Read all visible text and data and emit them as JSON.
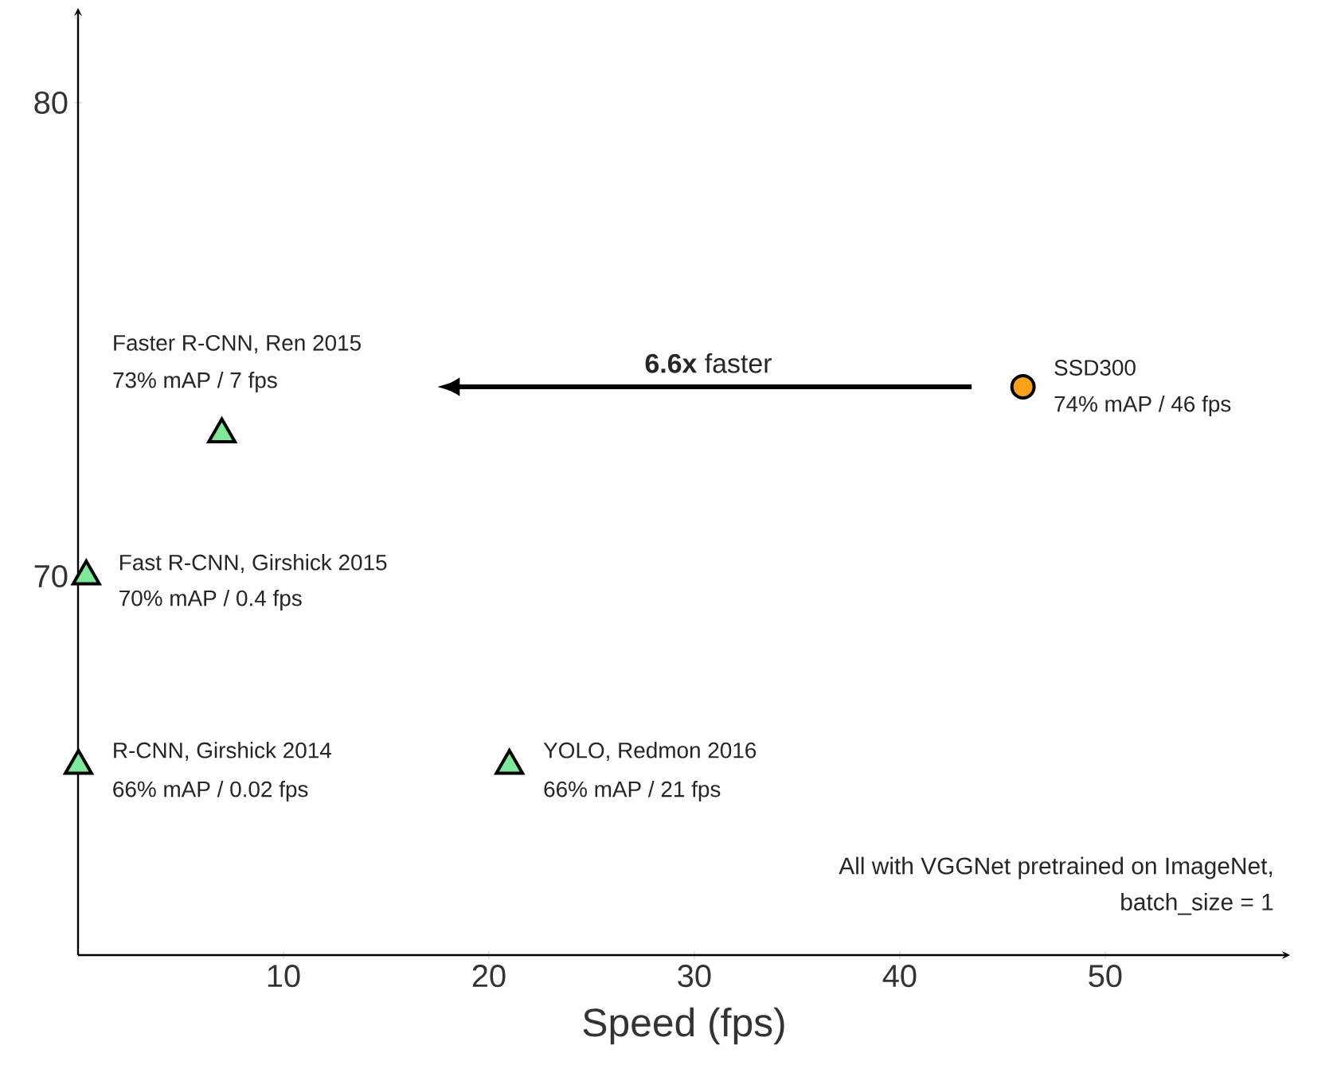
{
  "chart_data": {
    "type": "scatter",
    "xlabel": "Speed (fps)",
    "xlim": [
      0,
      59
    ],
    "ylim": [
      62,
      82
    ],
    "xticks": [
      10,
      20,
      30,
      40,
      50
    ],
    "yticks": [
      70,
      80
    ],
    "series": [
      {
        "color": "#7ee89a",
        "marker": "triangle",
        "x": [
          7,
          0.4,
          0.02,
          21
        ],
        "values": [
          73,
          70,
          66,
          66
        ]
      },
      {
        "color": "#f7a11a",
        "marker": "circle",
        "x": [
          46
        ],
        "values": [
          74
        ]
      }
    ],
    "annotations": [
      "Faster R-CNN, Ren 2015",
      "73% mAP / 7 fps",
      {
        "text": "SSD300",
        "x": 46,
        "y": 74
      },
      {
        "text": "74% mAP / 46 fps",
        "x": 46,
        "y": 74
      },
      {
        "text": "Fast R-CNN, Girshick 2015",
        "x": 0.4,
        "y": 70
      },
      {
        "text": "70% mAP / 0.4 fps",
        "x": 0.4,
        "y": 70
      },
      {
        "text": "R-CNN, Girshick 2014",
        "x": 0.02,
        "y": 66
      },
      {
        "text": "66% mAP / 0.02 fps",
        "x": 0.02,
        "y": 66
      },
      {
        "text": "YOLO, Redmon 2016",
        "x": 21,
        "y": 66
      },
      {
        "text": "66% mAP / 21 fps",
        "x": 21,
        "y": 66
      },
      "**6.6x** faster",
      "All with VGGNet pretrained on ImageNet,",
      "batch_size = 1"
    ]
  }
}
